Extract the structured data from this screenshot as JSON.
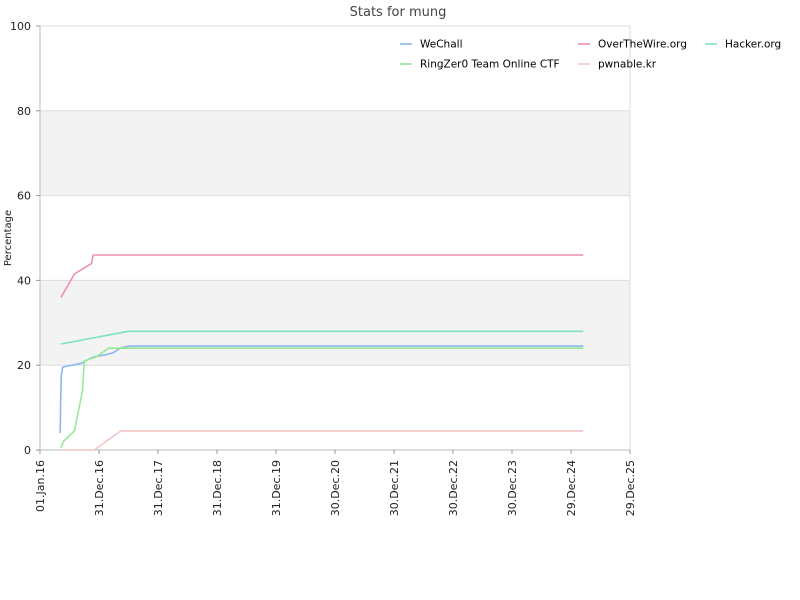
{
  "chart_data": {
    "type": "line",
    "title": "Stats for mung",
    "xlabel": "",
    "ylabel": "Percentage",
    "ylim": [
      0,
      100
    ],
    "y_ticks": [
      "0",
      "20",
      "40",
      "60",
      "80",
      "100"
    ],
    "x_ticks": [
      "01.Jan.16",
      "31.Dec.16",
      "31.Dec.17",
      "31.Dec.18",
      "31.Dec.19",
      "30.Dec.20",
      "30.Dec.21",
      "30.Dec.22",
      "30.Dec.23",
      "29.Dec.24",
      "29.Dec.25"
    ],
    "grid": true,
    "banded_background": true,
    "legend_position": "top-right",
    "series": [
      {
        "name": "WeChall",
        "color": "#8bb8ee",
        "x": [
          "2016-05-05",
          "2016-05-08",
          "2016-05-12",
          "2016-05-20",
          "2016-06-15",
          "2016-07-20",
          "2016-09-15",
          "2016-11-01",
          "2016-12-05",
          "2017-02-15",
          "2017-04-01",
          "2017-05-10",
          "2017-07-01",
          "2025-03-15"
        ],
        "y": [
          4,
          12,
          17.5,
          19.5,
          19.8,
          20.0,
          20.5,
          21.5,
          22.0,
          22.5,
          23.0,
          24.0,
          24.5,
          24.5
        ]
      },
      {
        "name": "OverTheWire.org",
        "color": "#ee8fb3",
        "x": [
          "2016-05-10",
          "2016-08-01",
          "2016-11-15",
          "2016-11-25",
          "2025-03-15"
        ],
        "y": [
          36,
          41.5,
          44,
          46,
          46
        ]
      },
      {
        "name": "Hacker.org",
        "color": "#7fe0c6",
        "x": [
          "2016-05-10",
          "2017-07-01",
          "2025-03-15"
        ],
        "y": [
          25,
          28,
          28
        ]
      },
      {
        "name": "RingZer0 Team Online CTF",
        "color": "#96ea96",
        "x": [
          "2016-05-10",
          "2016-05-25",
          "2016-08-01",
          "2016-09-20",
          "2016-10-01",
          "2016-12-15",
          "2017-03-01",
          "2025-03-15"
        ],
        "y": [
          0.5,
          2,
          4.5,
          14,
          21,
          22,
          24,
          24
        ]
      },
      {
        "name": "pwnable.kr",
        "color": "#f4c3c3",
        "x": [
          "2016-05-10",
          "2016-12-01",
          "2017-05-15",
          "2025-03-15"
        ],
        "y": [
          0,
          0,
          4.5,
          4.5
        ]
      }
    ]
  }
}
